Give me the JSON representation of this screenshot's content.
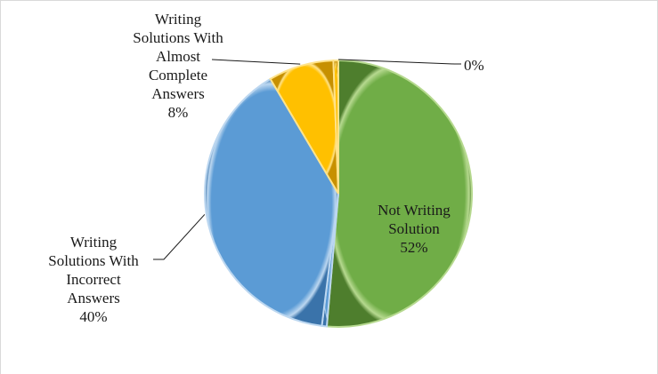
{
  "chart_data": {
    "type": "pie",
    "title": "",
    "slices": [
      {
        "label_lines": [
          "Not Writing",
          "Solution"
        ],
        "pct_label": "52%",
        "value": 52,
        "color": "#70ad47",
        "color_light": "#b6d98f",
        "color_dark": "#4e7e2d"
      },
      {
        "label_lines": [],
        "pct_label": "0%",
        "value": 0.6,
        "color": "#5b9bd5",
        "color_light": "#bcd7f0",
        "color_dark": "#3a73aa"
      },
      {
        "label_lines": [
          "Writing",
          "Solutions With",
          "Incorrect",
          "Answers"
        ],
        "pct_label": "40%",
        "value": 40,
        "color": "#5b9bd5",
        "color_light": "#bcd7f0",
        "color_dark": "#3a73aa"
      },
      {
        "label_lines": [
          "Writing",
          "Solutions With",
          "Almost",
          "Complete",
          "Answers"
        ],
        "pct_label": "8%",
        "value": 8,
        "color": "#ffc000",
        "color_light": "#ffe38a",
        "color_dark": "#c79000"
      },
      {
        "label_lines": [],
        "pct_label": "0%",
        "value": 0.6,
        "color": "#ffc000",
        "color_light": "#ffe38a",
        "color_dark": "#c79000"
      }
    ],
    "zero_slice_label": "0%"
  }
}
